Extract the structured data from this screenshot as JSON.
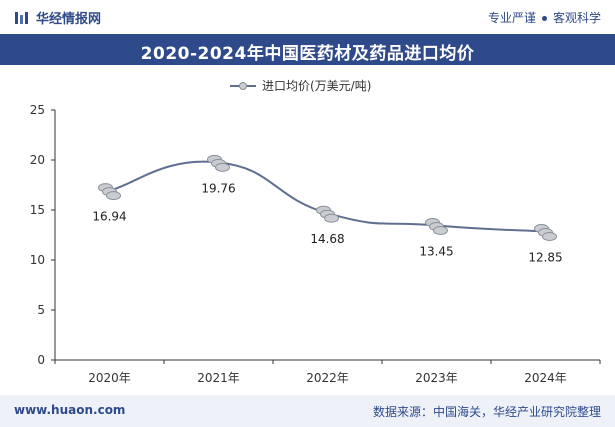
{
  "header": {
    "brand": "华经情报网",
    "slogan_left": "专业严谨",
    "slogan_right": "客观科学"
  },
  "title": "2020-2024年中国医药材及药品进口均价",
  "legend": "进口均价(万美元/吨)",
  "footer": {
    "site": "www.huaon.com",
    "source": "数据来源：中国海关，华经产业研究院整理"
  },
  "colors": {
    "primary": "#2f4a8a",
    "line": "#5f6f8f",
    "marker": "#c9ccd1"
  },
  "chart_data": {
    "type": "line",
    "categories": [
      "2020年",
      "2021年",
      "2022年",
      "2023年",
      "2024年"
    ],
    "series": [
      {
        "name": "进口均价(万美元/吨)",
        "values": [
          16.94,
          19.76,
          14.68,
          13.45,
          12.85
        ]
      }
    ],
    "data_labels": [
      "16.94",
      "19.76",
      "14.68",
      "13.45",
      "12.85"
    ],
    "ylim": [
      0,
      25
    ],
    "yticks": [
      0,
      5,
      10,
      15,
      20,
      25
    ],
    "grid": false,
    "legend_position": "top"
  }
}
